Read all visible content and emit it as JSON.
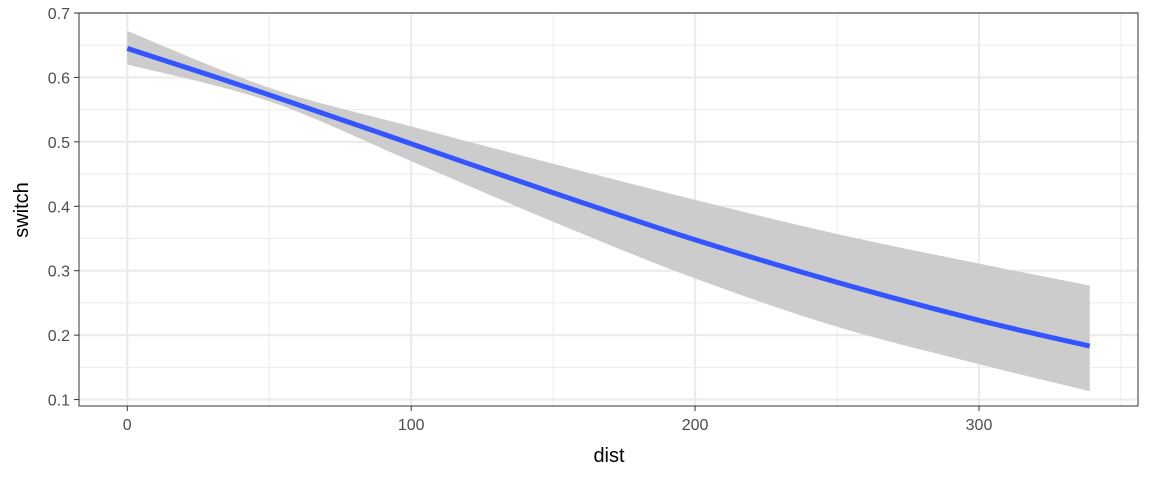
{
  "chart_data": {
    "type": "line",
    "xlabel": "dist",
    "ylabel": "switch",
    "xlim": [
      -17,
      356
    ],
    "ylim": [
      0.09,
      0.7
    ],
    "x_ticks": [
      0,
      100,
      200,
      300
    ],
    "x_minor_ticks": [
      50,
      150,
      250,
      350
    ],
    "y_ticks": [
      0.1,
      0.2,
      0.3,
      0.4,
      0.5,
      0.6,
      0.7
    ],
    "y_minor_ticks": [
      0.15,
      0.25,
      0.35,
      0.45,
      0.55,
      0.65
    ],
    "grid": true,
    "legend": "none",
    "series": [
      {
        "x": [
          0,
          50,
          100,
          150,
          200,
          250,
          300,
          339
        ],
        "y": [
          0.645,
          0.573,
          0.497,
          0.421,
          0.348,
          0.282,
          0.223,
          0.183
        ],
        "lower": [
          0.62,
          0.563,
          0.47,
          0.376,
          0.288,
          0.213,
          0.155,
          0.113
        ],
        "upper": [
          0.672,
          0.584,
          0.524,
          0.466,
          0.41,
          0.357,
          0.311,
          0.277
        ]
      }
    ],
    "colors": {
      "line": "#3355ff",
      "ribbon": "#cccccc",
      "grid": "#ebebeb",
      "panel_border": "#333333"
    }
  }
}
